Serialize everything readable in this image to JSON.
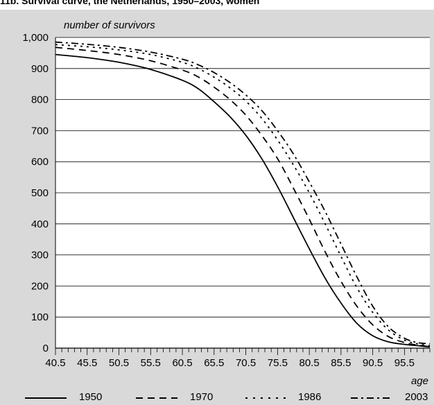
{
  "figure": {
    "title": "11b. Survival curve, the Netherlands, 1950–2003, women"
  },
  "chart_data": {
    "type": "line",
    "title": "11b. Survival curve, the Netherlands, 1950–2003, women",
    "ylabel": "number of survivors",
    "xlabel": "age",
    "ylim": [
      0,
      1000
    ],
    "xlim": [
      40.5,
      99.5
    ],
    "y_ticks": [
      "0",
      "100",
      "200",
      "300",
      "400",
      "500",
      "600",
      "700",
      "800",
      "900",
      "1,000"
    ],
    "x_tick_labels": [
      "40.5",
      "45.5",
      "50.5",
      "55.5",
      "60.5",
      "65.5",
      "70.5",
      "75.5",
      "80.5",
      "85.5",
      "90.5",
      "95.5"
    ],
    "grid": "horizontal",
    "legend_position": "bottom",
    "series": [
      {
        "name": "1950",
        "style": "solid",
        "x": [
          40.5,
          45.5,
          50.5,
          55.5,
          60.5,
          63.0,
          65.5,
          68.0,
          70.5,
          73.0,
          75.5,
          78.0,
          80.5,
          83.0,
          85.5,
          88.0,
          90.5,
          93.0,
          95.5,
          97.5,
          99.5
        ],
        "y": [
          945,
          935,
          920,
          897,
          862,
          835,
          793,
          745,
          685,
          610,
          520,
          420,
          320,
          225,
          145,
          80,
          40,
          20,
          12,
          8,
          4
        ]
      },
      {
        "name": "1970",
        "style": "dashed",
        "x": [
          40.5,
          45.5,
          50.5,
          55.5,
          60.5,
          63.0,
          65.5,
          68.0,
          70.5,
          73.0,
          75.5,
          78.0,
          80.5,
          83.0,
          85.5,
          88.0,
          90.5,
          93.0,
          95.5,
          97.5,
          99.5
        ],
        "y": [
          968,
          958,
          945,
          925,
          895,
          873,
          840,
          800,
          750,
          685,
          610,
          515,
          415,
          310,
          215,
          135,
          75,
          37,
          18,
          10,
          5
        ]
      },
      {
        "name": "1986",
        "style": "dotted",
        "x": [
          40.5,
          45.5,
          50.5,
          55.5,
          60.5,
          63.0,
          65.5,
          68.0,
          70.5,
          73.0,
          75.5,
          78.0,
          80.5,
          83.0,
          85.5,
          88.0,
          90.5,
          93.0,
          95.5,
          97.5,
          99.5
        ],
        "y": [
          977,
          970,
          960,
          945,
          920,
          900,
          872,
          838,
          795,
          740,
          670,
          590,
          500,
          400,
          295,
          195,
          115,
          58,
          26,
          14,
          8
        ]
      },
      {
        "name": "2003",
        "style": "dash-dot",
        "x": [
          40.5,
          45.5,
          50.5,
          55.5,
          60.5,
          63.0,
          65.5,
          68.0,
          70.5,
          73.0,
          75.5,
          78.0,
          80.5,
          83.0,
          85.5,
          88.0,
          90.5,
          93.0,
          95.5,
          97.5,
          99.5
        ],
        "y": [
          985,
          978,
          968,
          953,
          930,
          912,
          887,
          855,
          815,
          765,
          700,
          625,
          535,
          440,
          335,
          230,
          135,
          68,
          32,
          18,
          14
        ]
      }
    ]
  }
}
